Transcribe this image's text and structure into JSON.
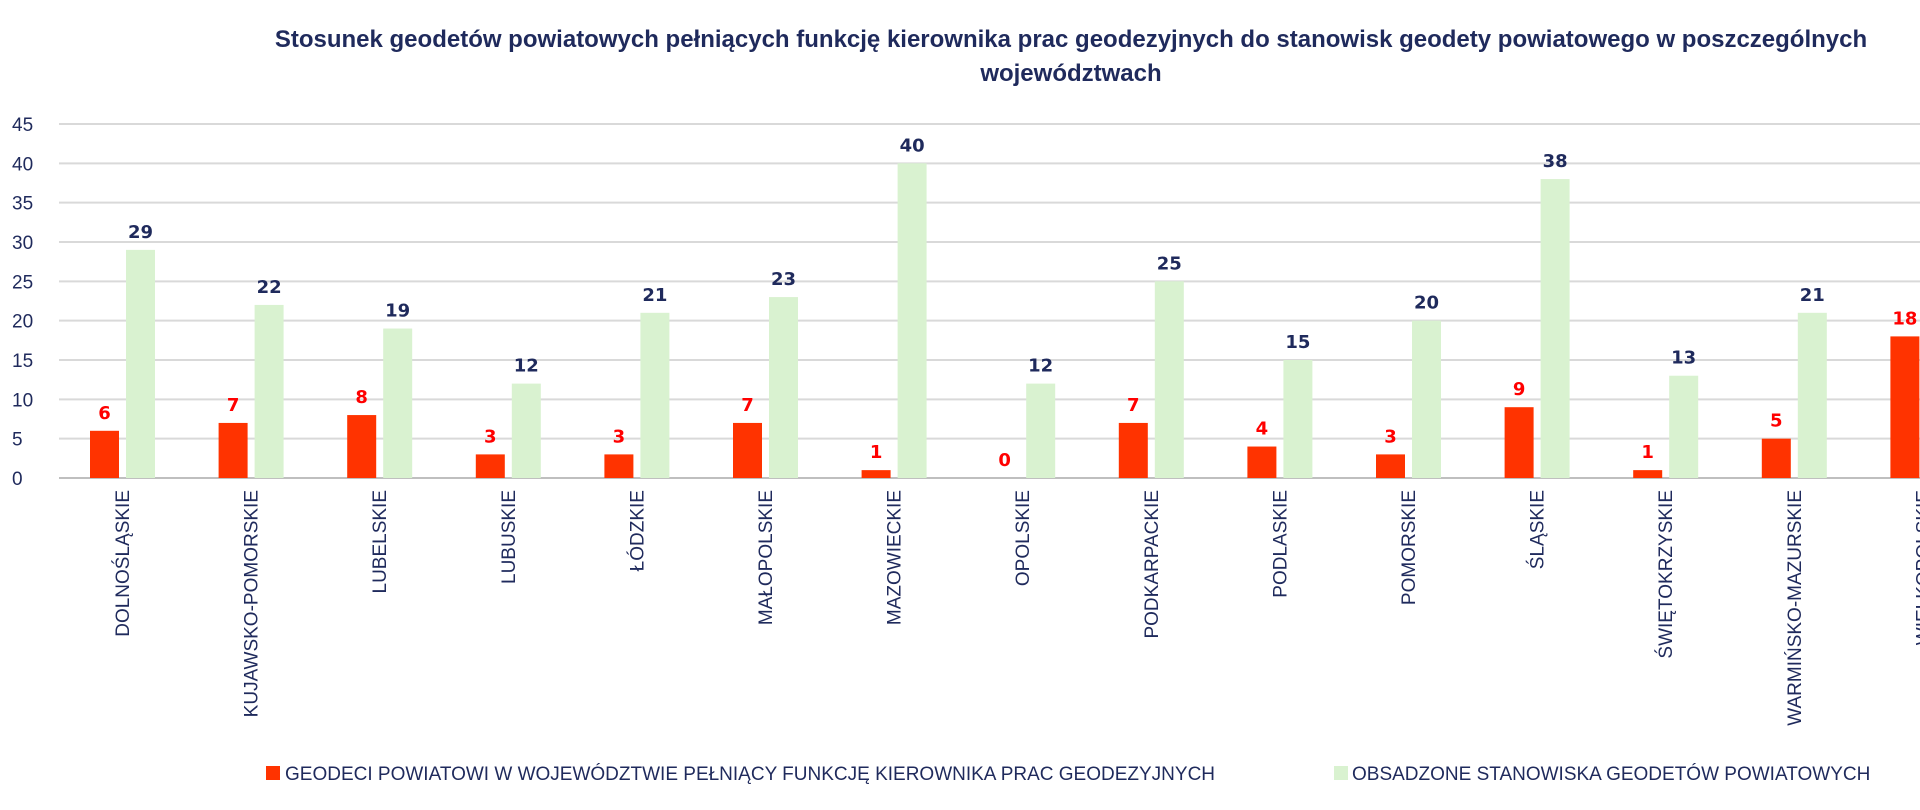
{
  "chart_data": {
    "type": "bar",
    "title_lines": [
      "Stosunek geodetów powiatowych pełniących funkcję kierownika prac geodezyjnych do stanowisk geodety powiatowego w poszczególnych",
      "województwach"
    ],
    "xlabel": "",
    "ylabel": "",
    "ylim": [
      0,
      45
    ],
    "yticks": [
      0,
      5,
      10,
      15,
      20,
      25,
      30,
      35,
      40,
      45
    ],
    "grid": true,
    "legend_position": "bottom",
    "categories": [
      "DOLNOŚLĄSKIE",
      "KUJAWSKO-POMORSKIE",
      "LUBELSKIE",
      "LUBUSKIE",
      "ŁÓDZKIE",
      "MAŁOPOLSKIE",
      "MAZOWIECKIE",
      "OPOLSKIE",
      "PODKARPACKIE",
      "PODLASKIE",
      "POMORSKIE",
      "ŚLĄSKIE",
      "ŚWIĘTOKRZYSKIE",
      "WARMIŃSKO-MAZURSKIE",
      "WIELKOPOLSKIE"
    ],
    "series": [
      {
        "name": "GEODECI POWIATOWI W WOJEWÓDZTWIE PEŁNIĄCY FUNKCJĘ KIEROWNIKA PRAC GEODEZYJNYCH",
        "color": "#ff3300",
        "label_color": "#ff0000",
        "values": [
          6,
          7,
          8,
          3,
          3,
          7,
          1,
          0,
          7,
          4,
          3,
          9,
          1,
          5,
          18
        ]
      },
      {
        "name": "OBSADZONE STANOWISKA GEODETÓW POWIATOWYCH",
        "color": "#d9f2d0",
        "label_color": "#1f2a5c",
        "values": [
          29,
          22,
          19,
          12,
          21,
          23,
          40,
          12,
          25,
          15,
          20,
          38,
          13,
          21,
          null
        ]
      }
    ]
  }
}
